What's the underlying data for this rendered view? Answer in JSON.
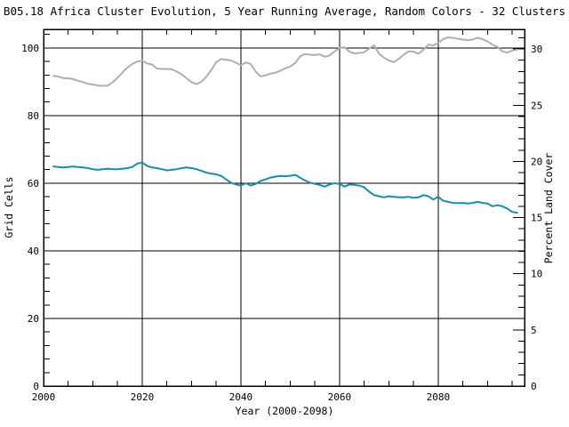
{
  "chart_data": {
    "type": "line",
    "title": "B05.18 Africa Cluster Evolution, 5 Year Running Average, Random Colors - 32 Clusters",
    "xlabel": "Year (2000-2098)",
    "ylabel_left": "Grid Cells",
    "ylabel_right": "Percent Land Cover",
    "xlim": [
      2000,
      2097.5
    ],
    "ylim_left": [
      0,
      105.5
    ],
    "ylim_right": [
      0,
      31.75
    ],
    "x_major_ticks": [
      2000,
      2020,
      2040,
      2060,
      2080
    ],
    "x_minor_step": 5,
    "y_left_major_ticks": [
      0,
      20,
      40,
      60,
      80,
      100
    ],
    "y_left_minor_step": 4,
    "y_right_major_ticks": [
      0,
      5,
      10,
      15,
      20,
      25,
      30
    ],
    "y_right_minor_step": 1,
    "grid": true,
    "legend_position": "none",
    "background_color": "#ffffff",
    "axis_color": "#000000",
    "years": [
      2002,
      2003,
      2004,
      2005,
      2006,
      2007,
      2008,
      2009,
      2010,
      2011,
      2012,
      2013,
      2014,
      2015,
      2016,
      2017,
      2018,
      2019,
      2020,
      2021,
      2022,
      2023,
      2024,
      2025,
      2026,
      2027,
      2028,
      2029,
      2030,
      2031,
      2032,
      2033,
      2034,
      2035,
      2036,
      2037,
      2038,
      2039,
      2040,
      2041,
      2042,
      2043,
      2044,
      2045,
      2046,
      2047,
      2048,
      2049,
      2050,
      2051,
      2052,
      2053,
      2054,
      2055,
      2056,
      2057,
      2058,
      2059,
      2060,
      2061,
      2062,
      2063,
      2064,
      2065,
      2066,
      2067,
      2068,
      2069,
      2070,
      2071,
      2072,
      2073,
      2074,
      2075,
      2076,
      2077,
      2078,
      2079,
      2080,
      2081,
      2082,
      2083,
      2084,
      2085,
      2086,
      2087,
      2088,
      2089,
      2090,
      2091,
      2092,
      2093,
      2094,
      2095,
      2096
    ],
    "series": [
      {
        "name": "gray-line",
        "axis": "left",
        "color": "#aab2aa",
        "values": [
          91.8,
          91.5,
          91.1,
          91.0,
          90.8,
          90.3,
          89.9,
          89.4,
          89.2,
          88.9,
          88.8,
          88.9,
          89.8,
          91.2,
          92.8,
          94.2,
          95.3,
          96.0,
          96.2,
          95.4,
          95.1,
          93.9,
          93.8,
          93.8,
          93.7,
          93.0,
          92.2,
          91.0,
          89.9,
          89.3,
          90.0,
          91.5,
          93.5,
          95.8,
          96.7,
          96.5,
          96.3,
          95.6,
          94.9,
          95.7,
          95.2,
          93.0,
          91.6,
          91.9,
          92.4,
          92.7,
          93.3,
          94.0,
          94.5,
          95.5,
          97.5,
          98.2,
          98.0,
          97.9,
          98.1,
          97.4,
          97.8,
          99.0,
          100.0,
          100.2,
          98.9,
          98.4,
          98.5,
          98.7,
          99.8,
          100.8,
          98.3,
          97.1,
          96.3,
          95.8,
          96.8,
          98.0,
          99.0,
          98.9,
          98.3,
          99.5,
          101.0,
          100.7,
          101.5,
          102.6,
          103.1,
          103.0,
          102.7,
          102.5,
          102.3,
          102.5,
          103.0,
          102.6,
          101.9,
          101.0,
          100.3,
          99.0,
          98.6,
          99.2,
          99.5
        ]
      },
      {
        "name": "teal-line",
        "axis": "right",
        "color": "#1b8ca6",
        "values": [
          19.55,
          19.5,
          19.45,
          19.5,
          19.55,
          19.5,
          19.45,
          19.4,
          19.3,
          19.25,
          19.3,
          19.35,
          19.3,
          19.3,
          19.35,
          19.4,
          19.5,
          19.8,
          19.9,
          19.6,
          19.45,
          19.4,
          19.3,
          19.2,
          19.25,
          19.3,
          19.4,
          19.45,
          19.4,
          19.3,
          19.15,
          19.0,
          18.9,
          18.85,
          18.7,
          18.4,
          18.1,
          17.95,
          17.85,
          18.05,
          17.85,
          18.0,
          18.25,
          18.4,
          18.55,
          18.65,
          18.7,
          18.68,
          18.72,
          18.8,
          18.55,
          18.3,
          18.1,
          18.0,
          17.9,
          17.75,
          17.95,
          18.05,
          18.0,
          17.75,
          17.95,
          17.9,
          17.85,
          17.7,
          17.3,
          17.0,
          16.9,
          16.8,
          16.9,
          16.85,
          16.8,
          16.8,
          16.85,
          16.75,
          16.8,
          17.0,
          16.9,
          16.6,
          16.85,
          16.5,
          16.4,
          16.3,
          16.28,
          16.3,
          16.25,
          16.3,
          16.4,
          16.3,
          16.25,
          16.0,
          16.1,
          16.0,
          15.8,
          15.5,
          15.42
        ]
      }
    ]
  }
}
